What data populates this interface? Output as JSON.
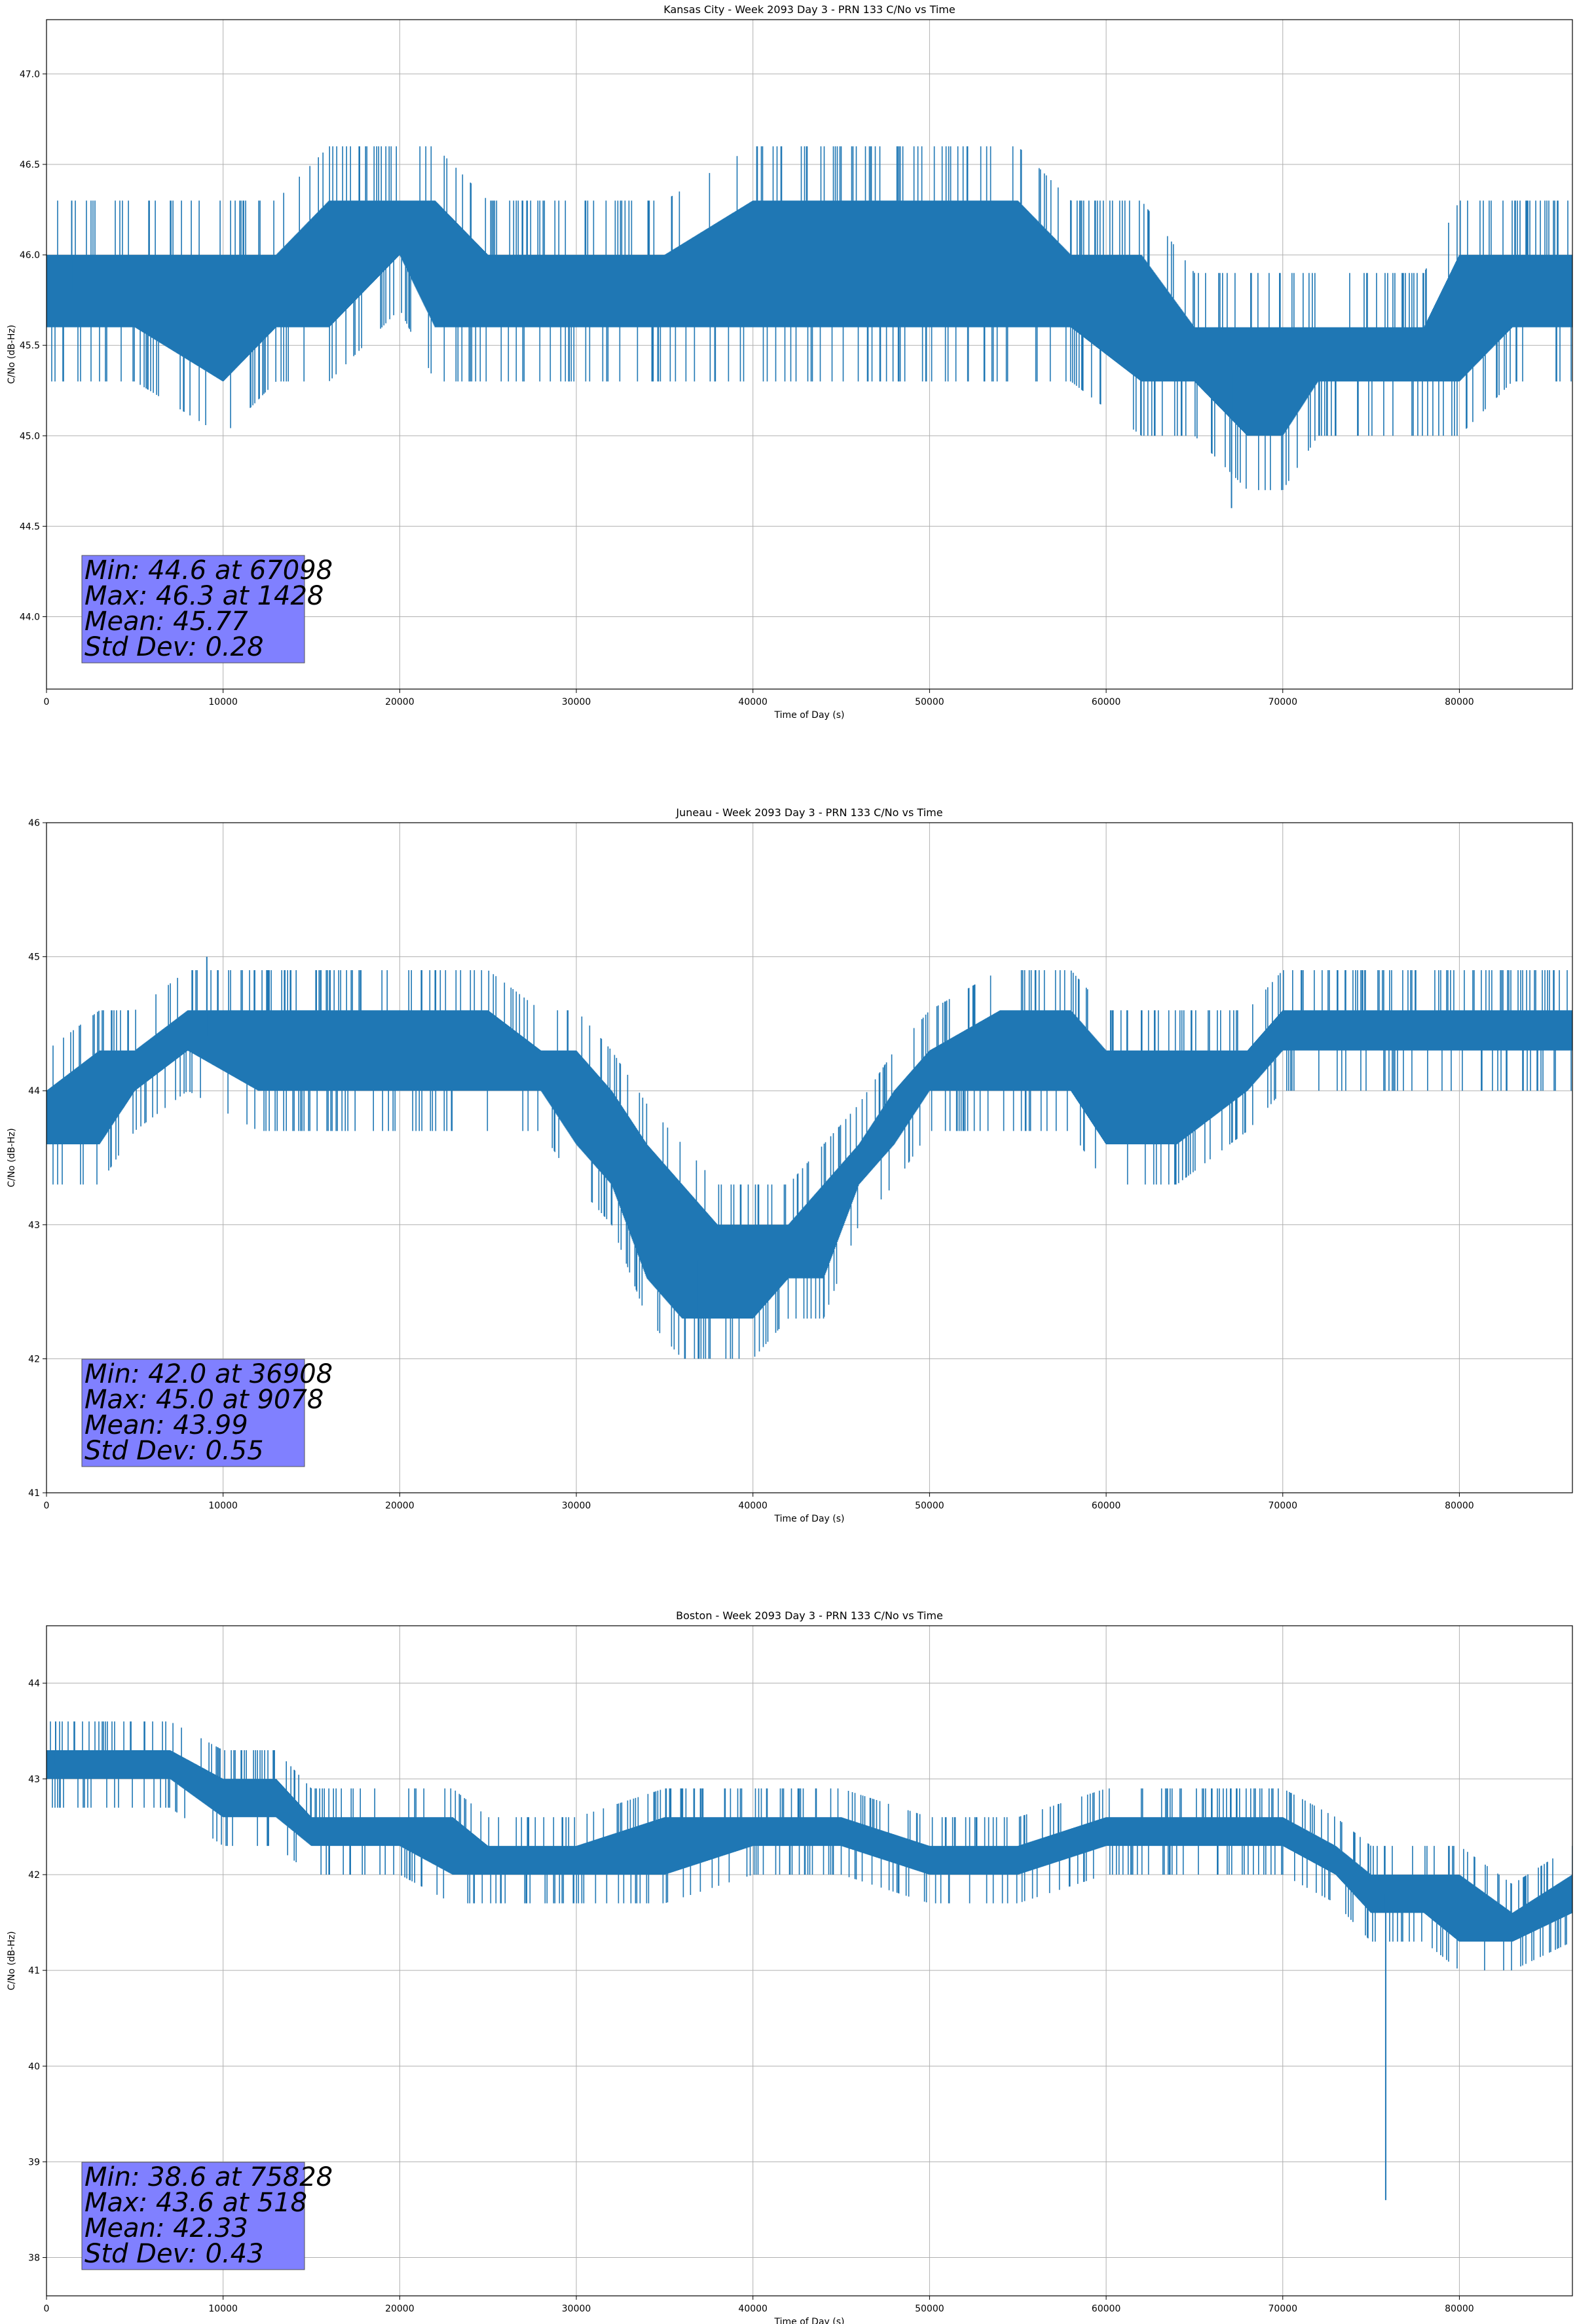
{
  "chart_data": [
    {
      "type": "line",
      "title": "Kansas City - Week 2093 Day 3 - PRN 133 C/No vs Time",
      "xlabel": "Time of Day (s)",
      "ylabel": "C/No (dB-Hz)",
      "xlim": [
        0,
        86400
      ],
      "ylim": [
        43.6,
        47.3
      ],
      "xticks": [
        0,
        10000,
        20000,
        30000,
        40000,
        50000,
        60000,
        70000,
        80000
      ],
      "yticks": [
        44.0,
        44.5,
        45.0,
        45.5,
        46.0,
        46.5,
        47.0
      ],
      "ytick_decimals": 1,
      "grid": true,
      "line_color": "#1f77b4",
      "stats_box_color": "#8080ff",
      "stats": [
        "Min: 44.6 at 67098",
        "Max: 46.3 at 1428",
        "Mean: 45.77",
        "Std Dev: 0.28"
      ],
      "series": [
        {
          "x": [
            0,
            5000,
            10000,
            13000,
            16000,
            20000,
            22000,
            25000,
            30000,
            35000,
            40000,
            45000,
            50000,
            55000,
            58000,
            62000,
            65000,
            68000,
            70000,
            72000,
            75000,
            78000,
            80000,
            83000,
            86400
          ],
          "low": [
            45.6,
            45.6,
            45.3,
            45.6,
            45.6,
            46.0,
            45.6,
            45.6,
            45.6,
            45.6,
            45.6,
            45.6,
            45.6,
            45.6,
            45.6,
            45.3,
            45.3,
            45.0,
            45.0,
            45.3,
            45.3,
            45.3,
            45.3,
            45.6,
            45.6
          ],
          "high": [
            46.0,
            46.0,
            46.0,
            46.0,
            46.3,
            46.3,
            46.3,
            46.0,
            46.0,
            46.0,
            46.3,
            46.3,
            46.3,
            46.3,
            46.0,
            46.0,
            45.6,
            45.6,
            45.6,
            45.6,
            45.6,
            45.6,
            46.0,
            46.0,
            46.0
          ],
          "extremes": [
            [
              1428,
              46.3
            ],
            [
              67098,
              44.6
            ]
          ]
        }
      ]
    },
    {
      "type": "line",
      "title": "Juneau - Week 2093 Day 3 - PRN 133 C/No vs Time",
      "xlabel": "Time of Day (s)",
      "ylabel": "C/No (dB-Hz)",
      "xlim": [
        0,
        86400
      ],
      "ylim": [
        41,
        46
      ],
      "xticks": [
        0,
        10000,
        20000,
        30000,
        40000,
        50000,
        60000,
        70000,
        80000
      ],
      "yticks": [
        41,
        42,
        43,
        44,
        45,
        46
      ],
      "ytick_decimals": 0,
      "grid": true,
      "line_color": "#1f77b4",
      "stats_box_color": "#8080ff",
      "stats": [
        "Min: 42.0 at 36908",
        "Max: 45.0 at 9078",
        "Mean: 43.99",
        "Std Dev: 0.55"
      ],
      "series": [
        {
          "x": [
            0,
            3000,
            5000,
            8000,
            12000,
            16000,
            20000,
            25000,
            28000,
            30000,
            32000,
            34000,
            36000,
            38000,
            40000,
            42000,
            44000,
            46000,
            48000,
            50000,
            54000,
            58000,
            60000,
            64000,
            68000,
            70000,
            75000,
            80000,
            86400
          ],
          "low": [
            43.6,
            43.6,
            44.0,
            44.3,
            44.0,
            44.0,
            44.0,
            44.0,
            44.0,
            43.6,
            43.3,
            42.6,
            42.3,
            42.3,
            42.3,
            42.6,
            42.6,
            43.3,
            43.6,
            44.0,
            44.0,
            44.0,
            43.6,
            43.6,
            44.0,
            44.3,
            44.3,
            44.3,
            44.3
          ],
          "high": [
            44.0,
            44.3,
            44.3,
            44.6,
            44.6,
            44.6,
            44.6,
            44.6,
            44.3,
            44.3,
            44.0,
            43.6,
            43.3,
            43.0,
            43.0,
            43.0,
            43.3,
            43.6,
            44.0,
            44.3,
            44.6,
            44.6,
            44.3,
            44.3,
            44.3,
            44.6,
            44.6,
            44.6,
            44.6
          ],
          "extremes": [
            [
              9078,
              45.0
            ],
            [
              36908,
              42.0
            ]
          ]
        }
      ]
    },
    {
      "type": "line",
      "title": "Boston - Week 2093 Day 3 - PRN 133 C/No vs Time",
      "xlabel": "Time of Day (s)",
      "ylabel": "C/No (dB-Hz)",
      "xlim": [
        0,
        86400
      ],
      "ylim": [
        37.6,
        44.6
      ],
      "xticks": [
        0,
        10000,
        20000,
        30000,
        40000,
        50000,
        60000,
        70000,
        80000
      ],
      "yticks": [
        38,
        39,
        40,
        41,
        42,
        43,
        44
      ],
      "ytick_decimals": 0,
      "grid": true,
      "line_color": "#1f77b4",
      "stats_box_color": "#8080ff",
      "stats": [
        "Min: 38.6 at 75828",
        "Max: 43.6 at 518",
        "Mean: 42.33",
        "Std Dev: 0.43"
      ],
      "series": [
        {
          "x": [
            0,
            3000,
            7000,
            10000,
            13000,
            15000,
            20000,
            23000,
            25000,
            30000,
            35000,
            40000,
            45000,
            50000,
            55000,
            60000,
            65000,
            70000,
            73000,
            75000,
            78000,
            80000,
            83000,
            86400
          ],
          "low": [
            43.0,
            43.0,
            43.0,
            42.6,
            42.6,
            42.3,
            42.3,
            42.0,
            42.0,
            42.0,
            42.0,
            42.3,
            42.3,
            42.0,
            42.0,
            42.3,
            42.3,
            42.3,
            42.0,
            41.6,
            41.6,
            41.3,
            41.3,
            41.6
          ],
          "high": [
            43.3,
            43.3,
            43.3,
            43.0,
            43.0,
            42.6,
            42.6,
            42.6,
            42.3,
            42.3,
            42.6,
            42.6,
            42.6,
            42.3,
            42.3,
            42.6,
            42.6,
            42.6,
            42.3,
            42.0,
            42.0,
            42.0,
            41.6,
            42.0
          ],
          "extremes": [
            [
              518,
              43.6
            ],
            [
              75828,
              38.6
            ]
          ]
        }
      ]
    }
  ]
}
